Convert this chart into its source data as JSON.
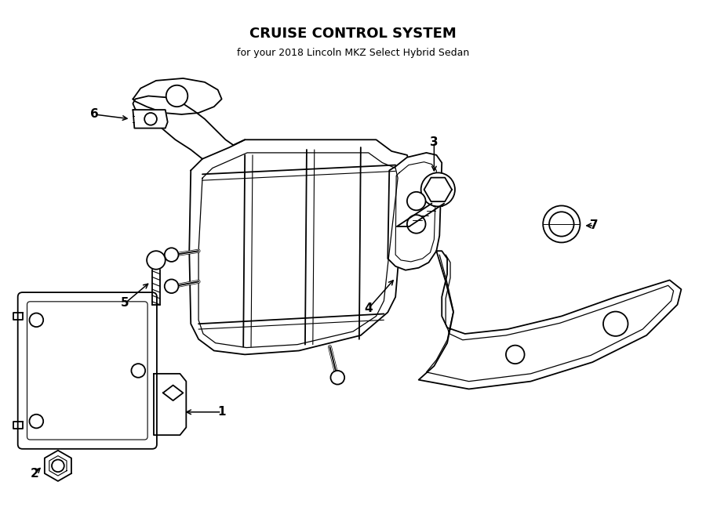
{
  "title": "CRUISE CONTROL SYSTEM",
  "subtitle": "for your 2018 Lincoln MKZ Select Hybrid Sedan",
  "bg_color": "#ffffff",
  "line_color": "#000000",
  "fig_width": 9.0,
  "fig_height": 6.61,
  "dpi": 100
}
